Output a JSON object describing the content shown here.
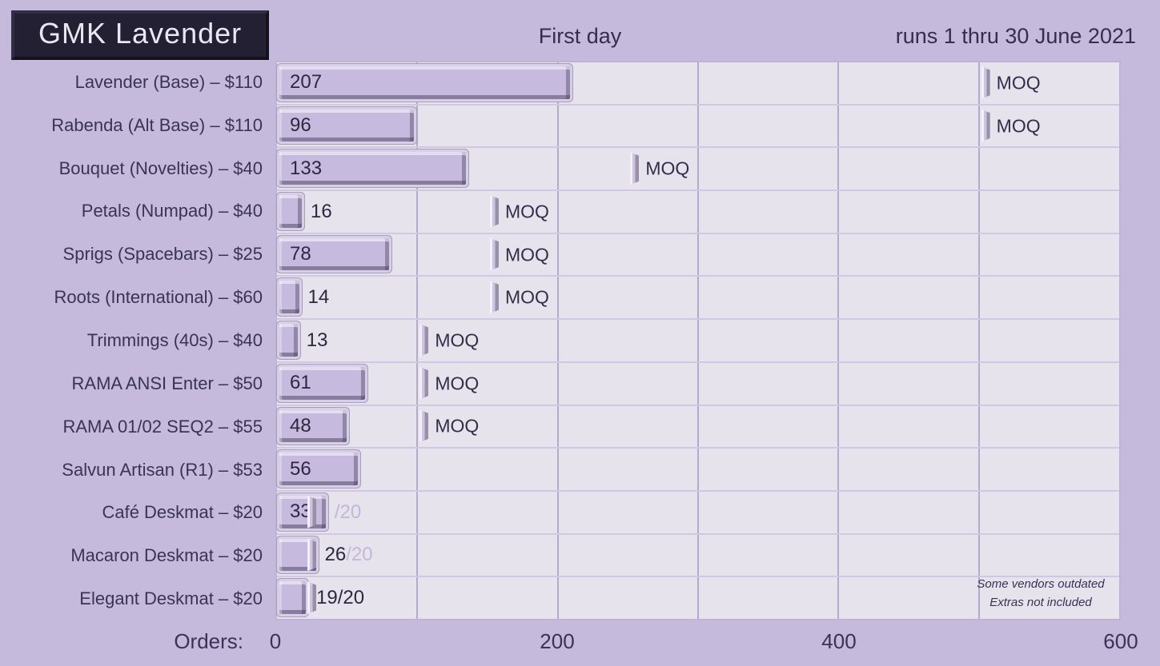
{
  "title": "GMK Lavender",
  "header": {
    "center": "First day",
    "right": "runs 1 thru 30 June 2021"
  },
  "axis": {
    "label": "Orders:",
    "ticks": [
      0,
      200,
      400,
      600
    ],
    "gridlines": [
      100,
      200,
      300,
      400,
      500
    ]
  },
  "note": {
    "line1": "Some vendors outdated",
    "line2": "Extras not included"
  },
  "moq_label": "MOQ",
  "colors": {
    "page_background": "#c5b9dc",
    "plot_background": "#e6e3ed",
    "bar_face": "#c6bade",
    "bar_frame": "#d7cfe8",
    "bevel_shadow": "#8d8498",
    "gridline": "#b4aacd",
    "row_separator": "#d0c8e0",
    "text_dark": "#362f4c",
    "faded_text": "#c2b7d8",
    "title_box_background": "#232033",
    "title_text": "#eae7f3"
  },
  "chart_data": {
    "type": "bar",
    "orientation": "horizontal",
    "title": "GMK Lavender",
    "subtitle": "First day",
    "xlabel": "Orders",
    "xlim": [
      0,
      600
    ],
    "legend": "none",
    "grid": "vertical",
    "rows": [
      {
        "label": "Lavender (Base) – $110",
        "value": 207,
        "moq": 500,
        "value_inside": true
      },
      {
        "label": "Rabenda (Alt Base) – $110",
        "value": 96,
        "moq": 500,
        "value_inside": true
      },
      {
        "label": "Bouquet (Novelties) – $40",
        "value": 133,
        "moq": 250,
        "value_inside": true
      },
      {
        "label": "Petals (Numpad) – $40",
        "value": 16,
        "moq": 150,
        "value_inside": false
      },
      {
        "label": "Sprigs (Spacebars) – $25",
        "value": 78,
        "moq": 150,
        "value_inside": true
      },
      {
        "label": "Roots (International) – $60",
        "value": 14,
        "moq": 150,
        "value_inside": false
      },
      {
        "label": "Trimmings (40s) – $40",
        "value": 13,
        "moq": 100,
        "value_inside": false
      },
      {
        "label": "RAMA ANSI Enter – $50",
        "value": 61,
        "moq": 100,
        "value_inside": true
      },
      {
        "label": "RAMA 01/02 SEQ2 – $55",
        "value": 48,
        "moq": 100,
        "value_inside": true
      },
      {
        "label": "Salvun Artisan (R1) – $53",
        "value": 56,
        "moq": null,
        "value_inside": true
      },
      {
        "label": "Café Deskmat – $20",
        "value": 33,
        "moq": null,
        "cap": 20,
        "suffix": "/20",
        "suffix_faded": true,
        "value_inside": true
      },
      {
        "label": "Macaron Deskmat – $20",
        "value": 26,
        "moq": null,
        "cap": 20,
        "suffix": "/20",
        "suffix_faded": true,
        "value_inside": false
      },
      {
        "label": "Elegant Deskmat – $20",
        "value": 19,
        "moq": null,
        "cap": 20,
        "suffix": "/20",
        "suffix_faded": false,
        "value_inside": false
      }
    ]
  }
}
